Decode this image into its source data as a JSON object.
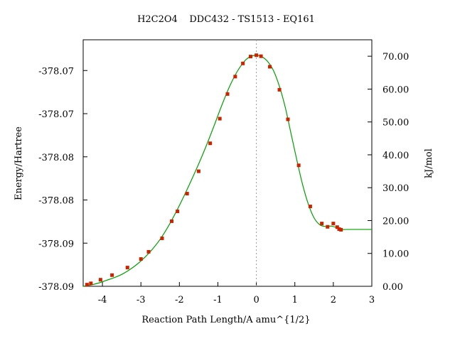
{
  "chart_data": {
    "type": "line",
    "title": "H2C2O4    DDC432 - TS1513 - EQ161",
    "xlabel": "Reaction Path Length/A amu^{1/2}",
    "ylabel_left": "Energy/Hartree",
    "ylabel_right": "kJ/mol",
    "xlim": [
      -4.5,
      3.0
    ],
    "ylim_kj": [
      0,
      75
    ],
    "x_ticks": [
      -4,
      -3,
      -2,
      -1,
      0,
      1,
      2,
      3
    ],
    "x_tick_labels": [
      "-4",
      "-3",
      "-2",
      "-1",
      "0",
      "1",
      "2",
      "3"
    ],
    "y_left_ticks_kj": [
      0.0,
      13.13,
      26.26,
      39.39,
      52.52,
      65.65
    ],
    "y_left_tick_labels": [
      "-378.09",
      "-378.09",
      "-378.08",
      "-378.08",
      "-378.07",
      "-378.07"
    ],
    "y_right_ticks": [
      0,
      10,
      20,
      30,
      40,
      50,
      60,
      70
    ],
    "y_right_tick_labels": [
      "0.00",
      "10.00",
      "20.00",
      "30.00",
      "40.00",
      "50.00",
      "60.00",
      "70.00"
    ],
    "ts_marker_x": 0.0,
    "line_color": "#00a000",
    "point_color": "#cc2200",
    "series": [
      {
        "curve_x": [
          -4.5,
          -4.3,
          -4.1,
          -3.9,
          -3.7,
          -3.5,
          -3.3,
          -3.1,
          -2.9,
          -2.7,
          -2.5,
          -2.3,
          -2.1,
          -1.9,
          -1.7,
          -1.5,
          -1.3,
          -1.1,
          -0.9,
          -0.7,
          -0.5,
          -0.3,
          -0.15,
          0.0,
          0.15,
          0.3,
          0.45,
          0.6,
          0.75,
          0.9,
          1.05,
          1.2,
          1.35,
          1.5,
          1.65,
          1.8,
          1.95,
          2.1,
          2.2,
          2.4,
          3.0
        ],
        "curve_y": [
          0.0,
          0.4,
          1.0,
          1.8,
          2.6,
          3.6,
          5.0,
          6.7,
          8.8,
          11.3,
          14.3,
          18.0,
          22.3,
          27.0,
          32.0,
          37.2,
          42.8,
          48.8,
          55.0,
          60.7,
          65.3,
          68.6,
          69.9,
          70.3,
          69.8,
          68.3,
          65.5,
          60.8,
          54.5,
          46.5,
          38.5,
          31.0,
          25.0,
          20.8,
          18.7,
          18.2,
          18.3,
          17.8,
          17.3,
          17.3,
          17.3
        ]
      }
    ],
    "points": {
      "x": [
        -4.4,
        -4.3,
        -4.05,
        -3.75,
        -3.35,
        -3.0,
        -2.8,
        -2.45,
        -2.2,
        -2.05,
        -1.8,
        -1.5,
        -1.2,
        -0.95,
        -0.75,
        -0.55,
        -0.35,
        -0.15,
        0.0,
        0.12,
        0.35,
        0.6,
        0.82,
        1.1,
        1.4,
        1.7,
        1.85,
        2.0,
        2.1,
        2.15,
        2.2
      ],
      "y": [
        0.5,
        0.9,
        2.0,
        3.4,
        5.7,
        8.3,
        10.5,
        14.6,
        19.8,
        22.8,
        28.2,
        35.0,
        43.5,
        51.0,
        58.5,
        63.8,
        67.8,
        69.9,
        70.3,
        70.0,
        66.8,
        59.8,
        50.8,
        36.8,
        24.3,
        19.1,
        18.1,
        19.1,
        18.0,
        17.4,
        17.2
      ]
    }
  }
}
